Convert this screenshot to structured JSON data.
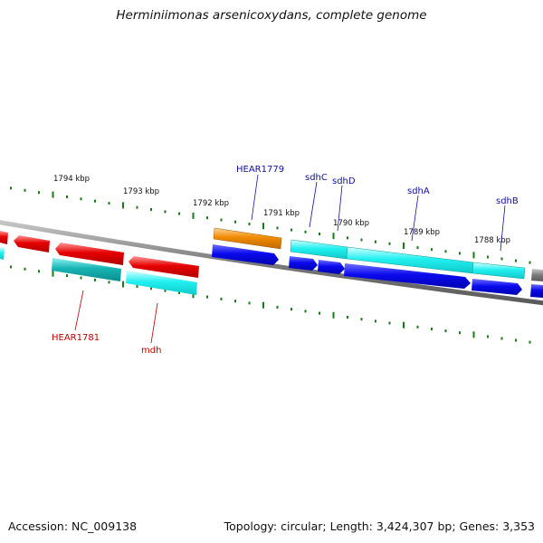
{
  "title": "Herminiimonas arsenicoxydans, complete genome",
  "accession_text": "Accession: NC_009138",
  "summary_text": "Topology: circular; Length: 3,424,307 bp; Genes: 3,353",
  "colors": {
    "backbone": "#7a7a7a",
    "tick": "#1a7a1a",
    "forward_label": "#1010a0",
    "reverse_label": "#c00000",
    "red_gene": "#e60000",
    "teal_gene": "#17b5b5",
    "cyan_gene": "#22f0f0",
    "orange_gene": "#f08a00",
    "blue_gene": "#0a0aee"
  },
  "scale": {
    "kbp_labels": [
      {
        "kbp": 1794,
        "text": "1794 kbp"
      },
      {
        "kbp": 1793,
        "text": "1793 kbp"
      },
      {
        "kbp": 1792,
        "text": "1792 kbp"
      },
      {
        "kbp": 1791,
        "text": "1791 kbp"
      },
      {
        "kbp": 1790,
        "text": "1790 kbp"
      },
      {
        "kbp": 1789,
        "text": "1789 kbp"
      },
      {
        "kbp": 1788,
        "text": "1788 kbp"
      }
    ]
  },
  "gene_labels": [
    {
      "name": "HEAR1779",
      "strand": "forward"
    },
    {
      "name": "sdhC",
      "strand": "forward"
    },
    {
      "name": "sdhD",
      "strand": "forward"
    },
    {
      "name": "sdhA",
      "strand": "forward"
    },
    {
      "name": "sdhB",
      "strand": "forward"
    },
    {
      "name": "HEAR1781",
      "strand": "reverse"
    },
    {
      "name": "mdh",
      "strand": "reverse"
    }
  ]
}
